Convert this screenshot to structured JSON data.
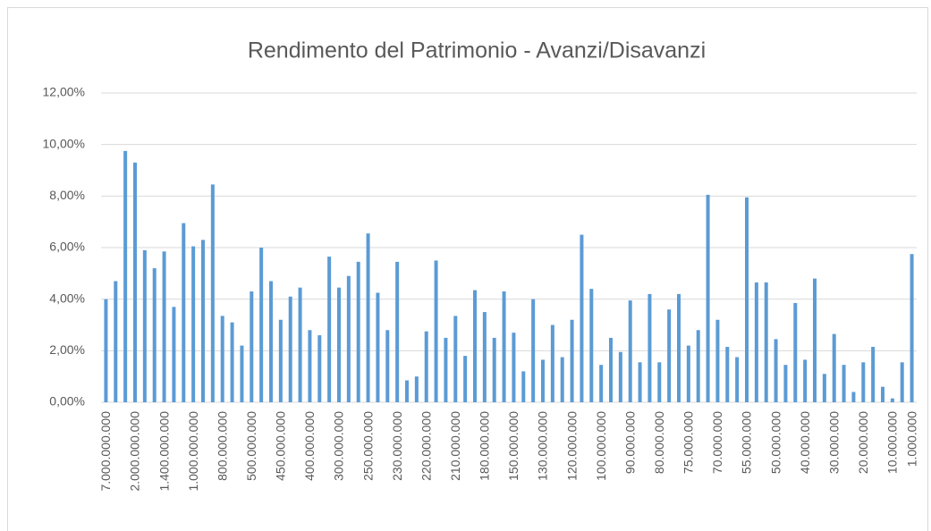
{
  "chart_data": {
    "type": "bar",
    "title": "Rendimento del Patrimonio - Avanzi/Disavanzi",
    "categories": [
      "7.000.000.000",
      null,
      null,
      "2.000.000.000",
      null,
      null,
      "1.400.000.000",
      null,
      null,
      "1.000.000.000",
      null,
      null,
      "800.000.000",
      null,
      null,
      "500.000.000",
      null,
      null,
      "450.000.000",
      null,
      null,
      "400.000.000",
      null,
      null,
      "300.000.000",
      null,
      null,
      "250.000.000",
      null,
      null,
      "230.000.000",
      null,
      null,
      "220.000.000",
      null,
      null,
      "210.000.000",
      null,
      null,
      "180.000.000",
      null,
      null,
      "150.000.000",
      null,
      null,
      "130.000.000",
      null,
      null,
      "120.000.000",
      null,
      null,
      "100.000.000",
      null,
      null,
      "90.000.000",
      null,
      null,
      "80.000.000",
      null,
      null,
      "75.000.000",
      null,
      null,
      "70.000.000",
      null,
      null,
      "55.000.000",
      null,
      null,
      "50.000.000",
      null,
      null,
      "40.000.000",
      null,
      null,
      "30.000.000",
      null,
      null,
      "20.000.000",
      null,
      null,
      "10.000.000",
      null,
      "1.000.000"
    ],
    "values": [
      4.0,
      4.7,
      9.75,
      9.3,
      5.9,
      5.2,
      5.85,
      3.7,
      6.95,
      6.05,
      6.3,
      8.45,
      3.35,
      3.1,
      2.2,
      4.3,
      6.0,
      4.7,
      3.2,
      4.1,
      4.45,
      2.8,
      2.6,
      5.65,
      4.45,
      4.9,
      5.45,
      6.55,
      4.25,
      2.8,
      5.45,
      0.85,
      1.0,
      2.75,
      5.5,
      2.5,
      3.35,
      1.8,
      4.35,
      3.5,
      2.5,
      4.3,
      2.7,
      1.2,
      4.0,
      1.65,
      3.0,
      1.75,
      3.2,
      6.5,
      4.4,
      1.45,
      2.5,
      1.95,
      3.95,
      1.55,
      4.2,
      1.55,
      3.6,
      4.2,
      2.2,
      2.8,
      8.05,
      3.2,
      2.15,
      1.75,
      7.95,
      4.65,
      4.65,
      2.45,
      1.45,
      3.85,
      1.65,
      4.8,
      1.1,
      2.65,
      1.45,
      0.4,
      1.55,
      2.15,
      0.6,
      0.15,
      1.55,
      5.75
    ],
    "color": "#5b9bd5",
    "ylim": [
      0,
      12
    ],
    "yticks": [
      {
        "value": 0,
        "label": "0,00%"
      },
      {
        "value": 2,
        "label": "2,00%"
      },
      {
        "value": 4,
        "label": "4,00%"
      },
      {
        "value": 6,
        "label": "6,00%"
      },
      {
        "value": 8,
        "label": "8,00%"
      },
      {
        "value": 10,
        "label": "10,00%"
      },
      {
        "value": 12,
        "label": "12,00%"
      }
    ],
    "grid": true
  }
}
